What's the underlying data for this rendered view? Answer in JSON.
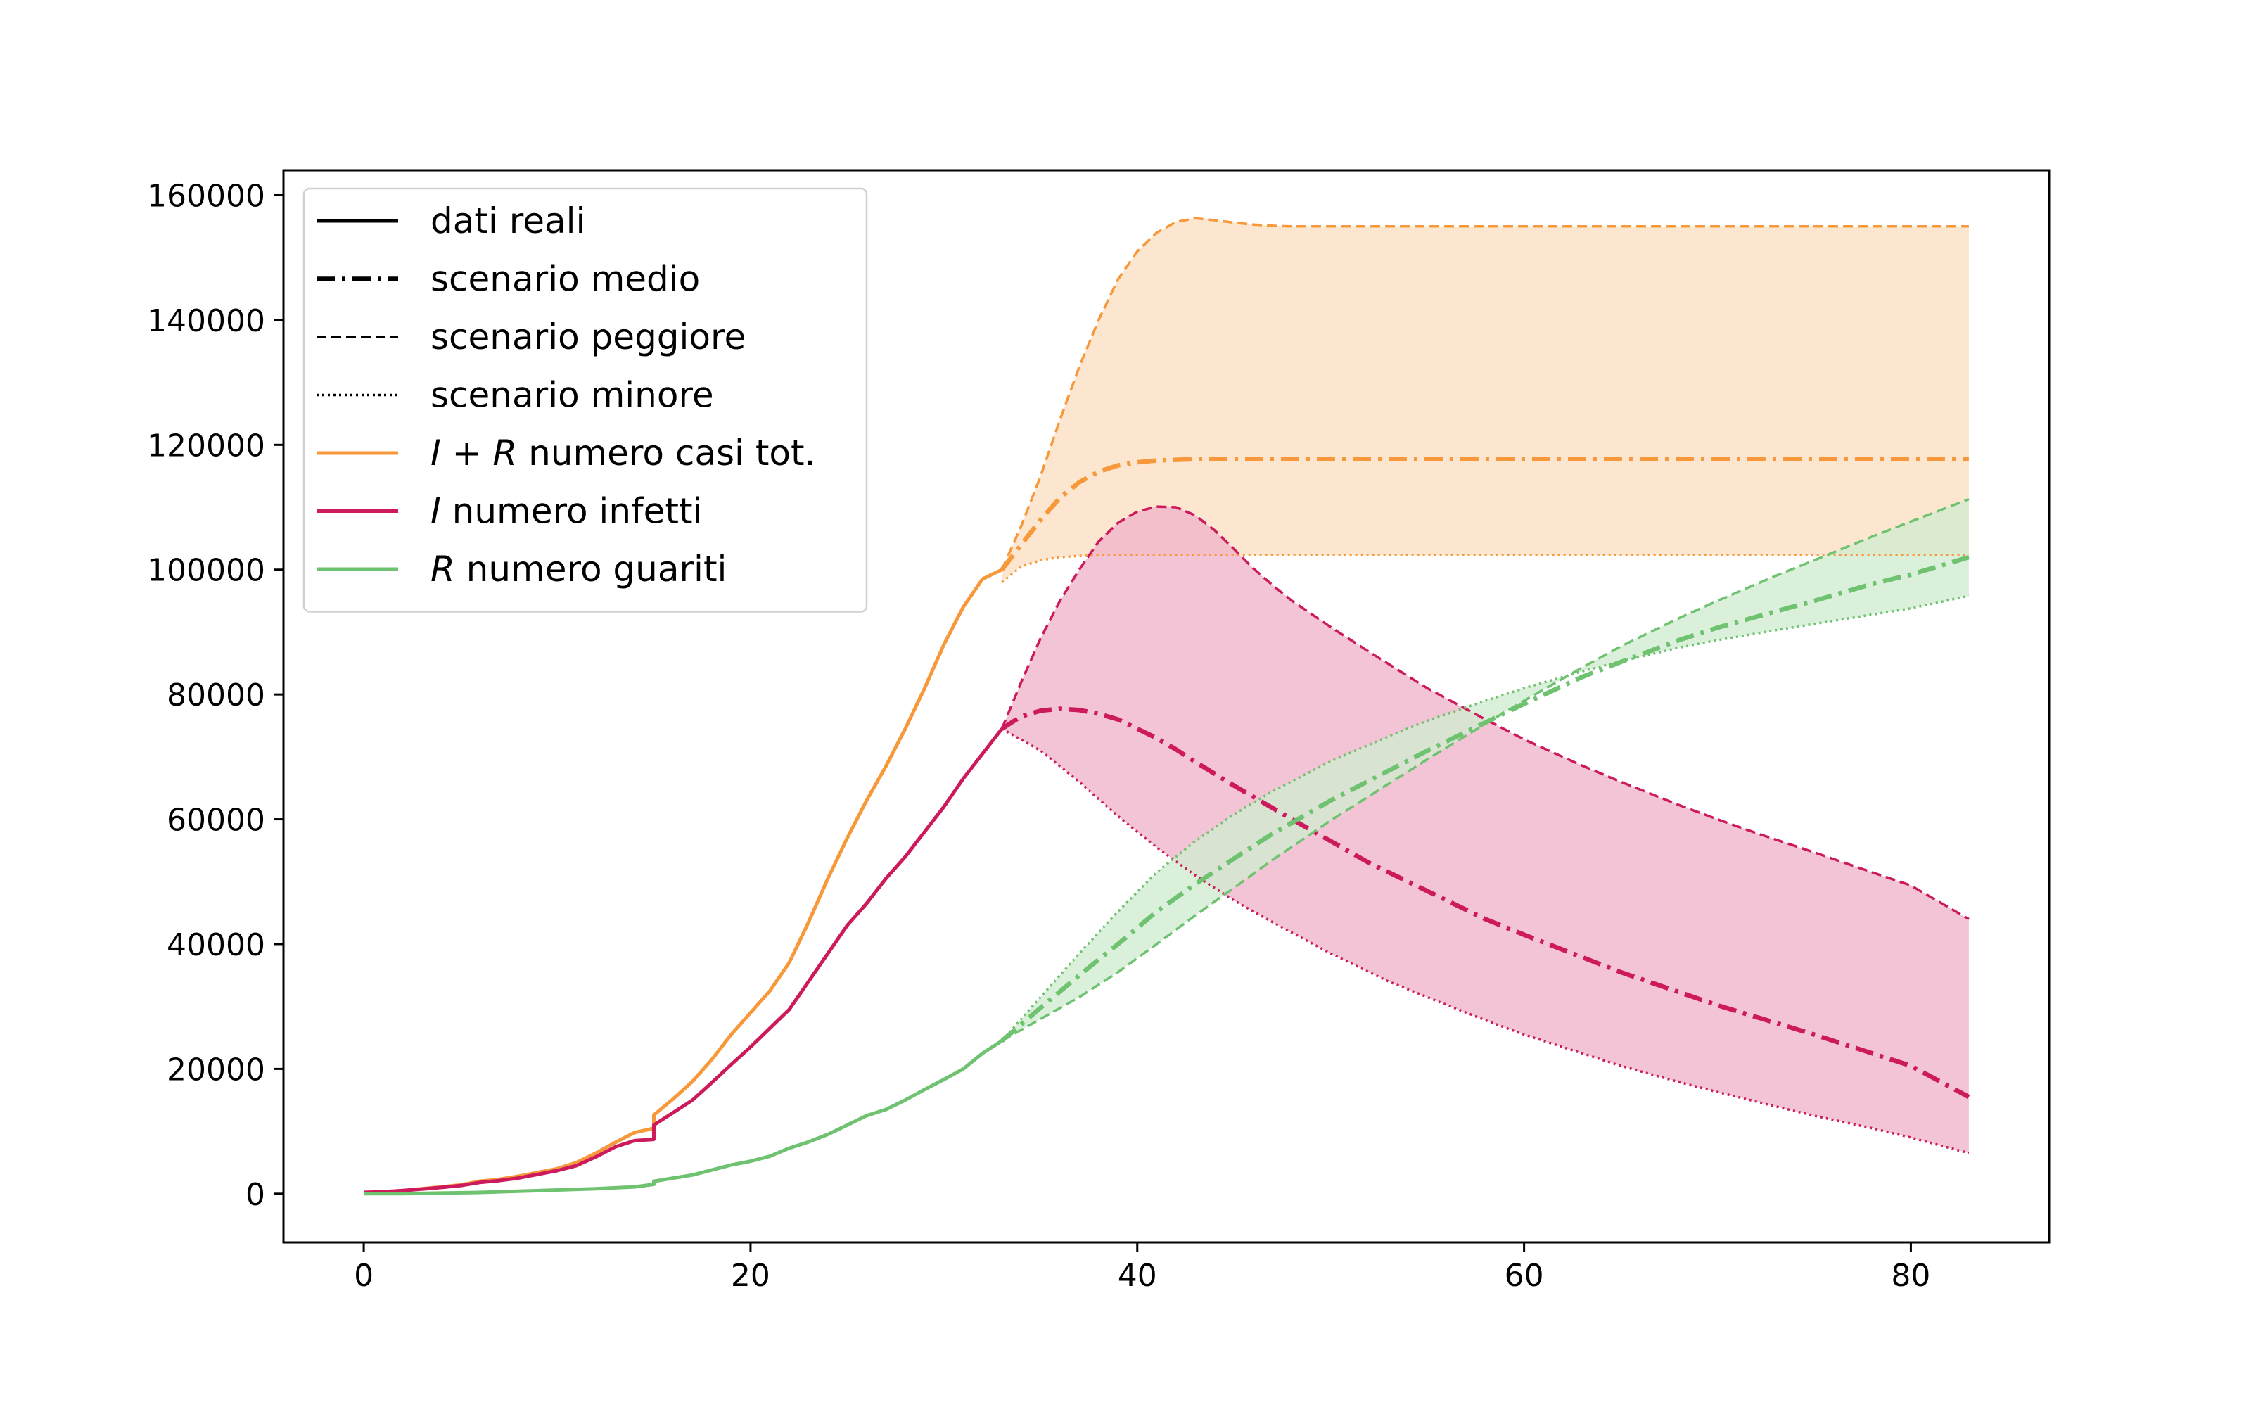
{
  "chart_data": {
    "type": "line",
    "title": "",
    "xlabel": "",
    "ylabel": "",
    "xlim": [
      -4.15,
      87.15
    ],
    "ylim": [
      -7800,
      164000
    ],
    "xticks": [
      0,
      20,
      40,
      60,
      80
    ],
    "yticks": [
      0,
      20000,
      40000,
      60000,
      80000,
      100000,
      120000,
      140000,
      160000
    ],
    "legend": {
      "placement": "top-left",
      "entries": [
        {
          "key": "dati",
          "style": "solid",
          "color": "#000000",
          "parts": [
            {
              "text": "dati reali",
              "italic": false
            }
          ]
        },
        {
          "key": "medio",
          "style": "dashdot",
          "color": "#000000",
          "parts": [
            {
              "text": "scenario medio",
              "italic": false
            }
          ]
        },
        {
          "key": "peggiore",
          "style": "dashed",
          "color": "#000000",
          "parts": [
            {
              "text": "scenario peggiore",
              "italic": false
            }
          ]
        },
        {
          "key": "minore",
          "style": "dotted",
          "color": "#000000",
          "parts": [
            {
              "text": "scenario minore",
              "italic": false
            }
          ]
        },
        {
          "key": "IR",
          "style": "solid",
          "color": "#f7993a",
          "parts": [
            {
              "text": "I + R",
              "italic": true
            },
            {
              "text": " numero casi tot.",
              "italic": false
            }
          ]
        },
        {
          "key": "I",
          "style": "solid",
          "color": "#cc1a5c",
          "parts": [
            {
              "text": "I",
              "italic": true
            },
            {
              "text": " numero infetti",
              "italic": false
            }
          ]
        },
        {
          "key": "R",
          "style": "solid",
          "color": "#6fc270",
          "parts": [
            {
              "text": "R",
              "italic": true
            },
            {
              "text": " numero guariti",
              "italic": false
            }
          ]
        }
      ]
    },
    "colors": {
      "IR": "#f7993a",
      "I": "#cc1a5c",
      "R": "#6fc270",
      "IR_fill": "#fde6cf",
      "I_fill": "#efb3c9",
      "R_fill": "#cfeccf"
    },
    "series": [
      {
        "name": "I + R numero casi tot.",
        "group": "IR",
        "scenario": "dati reali",
        "style": "solid",
        "x": [
          0,
          1,
          2,
          3,
          4,
          5,
          6,
          7,
          8,
          9,
          10,
          11,
          12,
          13,
          14,
          15,
          15,
          16,
          17,
          18,
          19,
          20,
          21,
          22,
          23,
          24,
          25,
          26,
          27,
          28,
          29,
          30,
          31,
          32,
          33
        ],
        "y": [
          200,
          300,
          500,
          800,
          1100,
          1400,
          2000,
          2300,
          2800,
          3400,
          4000,
          5000,
          6500,
          8200,
          9800,
          10500,
          12600,
          15200,
          18000,
          21500,
          25500,
          29000,
          32500,
          37000,
          43500,
          50500,
          57000,
          63000,
          68500,
          74500,
          81000,
          88000,
          94000,
          98500,
          100000
        ]
      },
      {
        "name": "I + R numero casi tot.",
        "group": "IR",
        "scenario": "scenario medio",
        "style": "dashdot",
        "x": [
          33,
          34,
          35,
          36,
          37,
          38,
          39,
          40,
          41,
          42,
          43,
          44,
          45,
          46,
          50,
          60,
          70,
          83
        ],
        "y": [
          100000,
          104000,
          108000,
          111500,
          114000,
          115700,
          116700,
          117200,
          117500,
          117600,
          117700,
          117700,
          117700,
          117700,
          117700,
          117700,
          117700,
          117700
        ]
      },
      {
        "name": "I + R numero casi tot.",
        "group": "IR",
        "scenario": "scenario peggiore",
        "style": "dashed",
        "x": [
          33,
          34,
          35,
          36,
          37,
          38,
          39,
          40,
          41,
          42,
          43,
          44,
          45,
          46,
          47,
          48,
          50,
          60,
          70,
          83
        ],
        "y": [
          100000,
          107000,
          115000,
          124000,
          132500,
          140000,
          146500,
          151000,
          154000,
          155700,
          156300,
          156000,
          155600,
          155300,
          155100,
          155000,
          155000,
          155000,
          155000,
          155000
        ]
      },
      {
        "name": "I + R numero casi tot.",
        "group": "IR",
        "scenario": "scenario minore",
        "style": "dotted",
        "x": [
          33,
          34,
          35,
          36,
          37,
          38,
          40,
          45,
          50,
          60,
          70,
          83
        ],
        "y": [
          98000,
          100500,
          101500,
          102000,
          102200,
          102300,
          102300,
          102300,
          102300,
          102300,
          102300,
          102300
        ]
      },
      {
        "name": "I numero infetti",
        "group": "I",
        "scenario": "dati reali",
        "style": "solid",
        "x": [
          0,
          1,
          2,
          3,
          4,
          5,
          6,
          7,
          8,
          9,
          10,
          11,
          12,
          13,
          14,
          15,
          15,
          16,
          17,
          18,
          19,
          20,
          21,
          22,
          23,
          24,
          25,
          26,
          27,
          28,
          29,
          30,
          31,
          32,
          33
        ],
        "y": [
          200,
          300,
          500,
          750,
          1000,
          1300,
          1800,
          2100,
          2500,
          3100,
          3700,
          4500,
          5900,
          7500,
          8500,
          8700,
          11000,
          13000,
          15000,
          17800,
          20700,
          23500,
          26500,
          29500,
          34000,
          38500,
          43000,
          46500,
          50500,
          54000,
          58000,
          62000,
          66500,
          70500,
          74500
        ]
      },
      {
        "name": "I numero infetti",
        "group": "I",
        "scenario": "scenario medio",
        "style": "dashdot",
        "x": [
          33,
          34,
          35,
          36,
          37,
          38,
          39,
          40,
          41,
          42,
          43,
          44,
          45,
          46,
          48,
          50,
          52,
          55,
          58,
          60,
          65,
          70,
          75,
          80,
          83
        ],
        "y": [
          74500,
          76500,
          77400,
          77700,
          77500,
          76900,
          76000,
          74500,
          73000,
          71200,
          69200,
          67300,
          65400,
          63600,
          60000,
          56500,
          53000,
          48500,
          44000,
          41500,
          35500,
          30200,
          25500,
          20500,
          15500
        ]
      },
      {
        "name": "I numero infetti",
        "group": "I",
        "scenario": "scenario peggiore",
        "style": "dashed",
        "x": [
          33,
          34,
          35,
          36,
          37,
          38,
          39,
          40,
          41,
          42,
          43,
          44,
          45,
          46,
          47,
          48,
          50,
          52,
          55,
          58,
          60,
          63,
          65,
          68,
          70,
          72,
          75,
          78,
          80,
          83
        ],
        "y": [
          74500,
          82000,
          89000,
          95000,
          100000,
          104500,
          107500,
          109300,
          110100,
          110000,
          108700,
          106300,
          103300,
          100200,
          97500,
          95000,
          90800,
          86800,
          81000,
          76000,
          72800,
          68600,
          66000,
          62300,
          60000,
          57800,
          54700,
          51500,
          49400,
          44000
        ]
      },
      {
        "name": "I numero infetti",
        "group": "I",
        "scenario": "scenario minore",
        "style": "dotted",
        "x": [
          33,
          35,
          37,
          39,
          41,
          43,
          45,
          47,
          50,
          53,
          55,
          58,
          60,
          63,
          65,
          68,
          70,
          73,
          75,
          78,
          80,
          83
        ],
        "y": [
          74500,
          71000,
          66000,
          60500,
          55500,
          51000,
          47000,
          43500,
          38500,
          34000,
          31500,
          27800,
          25500,
          22500,
          20500,
          17900,
          16300,
          14000,
          12500,
          10500,
          9000,
          6500
        ]
      },
      {
        "name": "R numero guariti",
        "group": "R",
        "scenario": "dati reali",
        "style": "solid",
        "x": [
          0,
          2,
          4,
          6,
          8,
          10,
          12,
          14,
          15,
          15,
          16,
          17,
          18,
          19,
          20,
          21,
          22,
          23,
          24,
          25,
          26,
          27,
          28,
          29,
          30,
          31,
          32,
          33
        ],
        "y": [
          0,
          0,
          100,
          200,
          400,
          600,
          800,
          1100,
          1500,
          2000,
          2500,
          3000,
          3800,
          4600,
          5200,
          6000,
          7300,
          8300,
          9500,
          11000,
          12500,
          13500,
          15000,
          16700,
          18300,
          20000,
          22500,
          24500
        ]
      },
      {
        "name": "R numero guariti",
        "group": "R",
        "scenario": "scenario medio",
        "style": "dashdot",
        "x": [
          33,
          35,
          37,
          39,
          41,
          43,
          45,
          47,
          50,
          53,
          55,
          58,
          60,
          63,
          65,
          68,
          70,
          73,
          75,
          78,
          80,
          83
        ],
        "y": [
          24500,
          29800,
          35000,
          40000,
          45200,
          49600,
          53700,
          57700,
          63000,
          67800,
          71000,
          75500,
          78500,
          82800,
          85200,
          88700,
          90700,
          93300,
          95000,
          97700,
          99200,
          102000
        ]
      },
      {
        "name": "R numero guariti",
        "group": "R",
        "scenario": "scenario peggiore",
        "style": "dashed",
        "x": [
          33,
          35,
          37,
          39,
          41,
          43,
          45,
          47,
          50,
          53,
          55,
          58,
          60,
          63,
          65,
          68,
          70,
          73,
          75,
          78,
          80,
          83
        ],
        "y": [
          24500,
          28000,
          31500,
          35500,
          40000,
          44600,
          49000,
          53500,
          59800,
          65700,
          69600,
          75300,
          79000,
          84300,
          87700,
          92200,
          95000,
          99000,
          101500,
          105300,
          107700,
          111300
        ]
      },
      {
        "name": "R numero guariti",
        "group": "R",
        "scenario": "scenario minore",
        "style": "dotted",
        "x": [
          33,
          35,
          37,
          39,
          41,
          43,
          45,
          47,
          50,
          53,
          55,
          58,
          60,
          63,
          65,
          68,
          70,
          73,
          75,
          78,
          80,
          83
        ],
        "y": [
          24500,
          31500,
          38500,
          45200,
          51500,
          56500,
          60800,
          64500,
          69300,
          73300,
          75800,
          79000,
          81000,
          83700,
          85300,
          87500,
          88700,
          90300,
          91300,
          92800,
          93800,
          95800
        ]
      }
    ]
  }
}
